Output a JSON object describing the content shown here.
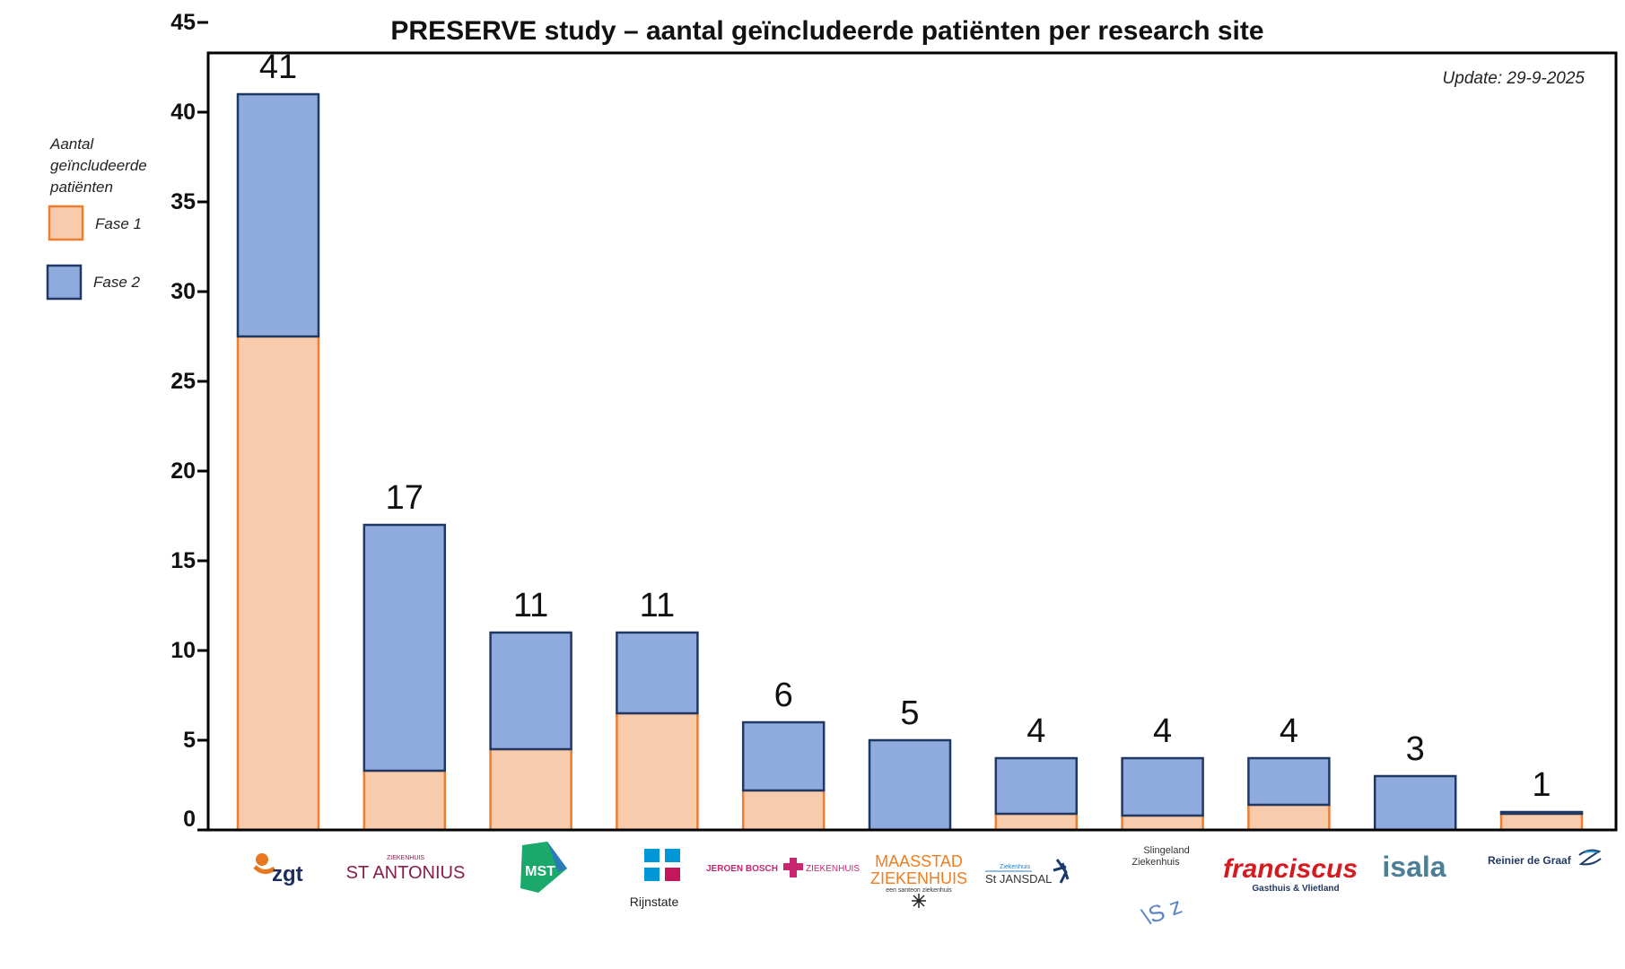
{
  "colors": {
    "fase1_fill": "#f8cbad",
    "fase1_stroke": "#ed7d31",
    "fase2_fill": "#8faadc",
    "fase2_stroke": "#1f3864",
    "axis": "#000000"
  },
  "chart_data": {
    "type": "bar",
    "stacked": true,
    "title": "PRESERVE study – aantal geïncludeerde patiënten per research site",
    "update_note": "Update: 29-9-2025",
    "legend_title": [
      "Aantal",
      "geïncludeerde",
      "patiënten"
    ],
    "ylim": [
      0,
      45
    ],
    "yticks": [
      0,
      5,
      10,
      15,
      20,
      25,
      30,
      35,
      40,
      45
    ],
    "categories": [
      "ZGT",
      "St. Antonius",
      "MST",
      "Rijnstate",
      "Jeroen Bosch Ziekenhuis",
      "Maasstad Ziekenhuis",
      "St Jansdal",
      "Slingeland Ziekenhuis",
      "Franciscus Gasthuis & Vlietland",
      "Isala",
      "Reinier de Graaf"
    ],
    "series": [
      {
        "name": "Fase 1",
        "values": [
          27.5,
          3.3,
          4.5,
          6.5,
          2.2,
          0,
          0.9,
          0.8,
          1.4,
          0,
          0.9
        ]
      },
      {
        "name": "Fase 2",
        "values": [
          13.5,
          13.7,
          6.5,
          4.5,
          3.8,
          5,
          3.1,
          3.2,
          2.6,
          3,
          0.1
        ]
      }
    ],
    "totals": [
      "41",
      "17",
      "11",
      "11",
      "6",
      "5",
      "4",
      "4",
      "4",
      "3",
      "1"
    ]
  },
  "logos": {
    "zgt": "zgt",
    "antonius_top": "ZIEKENHUIS",
    "antonius_main": "ST ANTONIUS",
    "mst": "MST",
    "rijnstate": "Rijnstate",
    "jbz_left": "JEROEN BOSCH",
    "jbz_right": "ZIEKENHUIS",
    "maasstad_1": "MAASSTAD",
    "maasstad_2": "ZIEKENHUIS",
    "maasstad_3": "een santeon ziekenhuis",
    "jansdal_top": "Ziekenhuis",
    "jansdal_main": "St JANSDAL",
    "slingeland_1": "Slingeland",
    "slingeland_2": "Ziekenhuis",
    "slingeland_mark": "\\S z",
    "franciscus_main": "franciscus",
    "franciscus_sub": "Gasthuis & Vlietland",
    "isala": "isala",
    "reinier": "Reinier de Graaf"
  }
}
